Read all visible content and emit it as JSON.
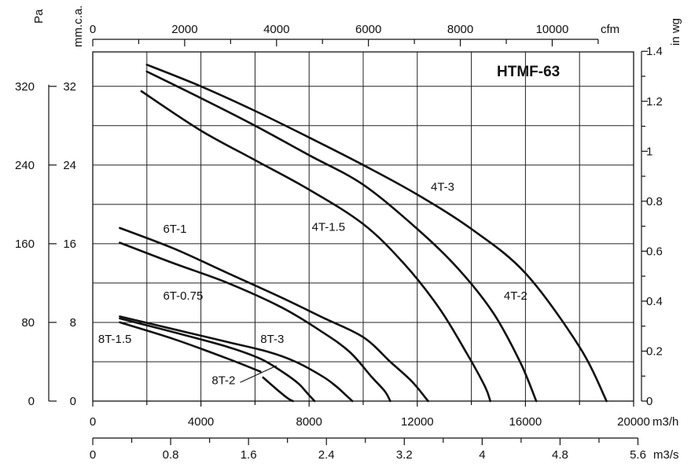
{
  "chart_data": {
    "type": "line",
    "title": "HTMF-63",
    "x": {
      "label": "m3/h",
      "lim": [
        0,
        20000
      ],
      "ticks": [
        0,
        4000,
        8000,
        12000,
        16000,
        20000
      ],
      "tick_labels": [
        "0",
        "4000",
        "8000",
        "12000",
        "16000",
        "20000"
      ]
    },
    "x_secondary_bottom": {
      "label": "m3/s",
      "ticks": [
        0,
        0.8,
        1.6,
        2.4,
        3.2,
        4,
        4.8,
        5.6
      ],
      "tick_labels": [
        "0",
        "0.8",
        "1.6",
        "2.4",
        "3.2",
        "4",
        "4.8",
        "5.6"
      ]
    },
    "x_secondary_top": {
      "label": "cfm",
      "ticks": [
        0,
        2000,
        4000,
        6000,
        8000,
        10000
      ],
      "tick_labels": [
        "0",
        "2000",
        "4000",
        "6000",
        "8000",
        "10000"
      ]
    },
    "y": {
      "label": "mm.c.a.",
      "lim": [
        0,
        35.5
      ],
      "ticks": [
        0,
        8,
        16,
        24,
        32
      ],
      "tick_labels": [
        "0",
        "8",
        "16",
        "24",
        "32"
      ]
    },
    "y_secondary_left": {
      "label": "Pa",
      "ticks": [
        0,
        80,
        160,
        240,
        320
      ],
      "tick_labels": [
        "0",
        "80",
        "160",
        "240",
        "320"
      ]
    },
    "y_secondary_right": {
      "label": "in wg",
      "ticks": [
        0,
        0.2,
        0.4,
        0.6,
        0.8,
        1,
        1.2,
        1.4
      ],
      "tick_labels": [
        "0",
        "0.2",
        "0.4",
        "0.6",
        "0.8",
        "1",
        "1.2",
        "1.4"
      ]
    },
    "grid": true,
    "series": [
      {
        "name": "4T-3",
        "x": [
          2000,
          4000,
          6000,
          8000,
          10000,
          12000,
          14000,
          16000,
          18000,
          19000
        ],
        "y": [
          34.2,
          32,
          29.5,
          26.8,
          24,
          21,
          17.5,
          13,
          5.5,
          0
        ]
      },
      {
        "name": "4T-2",
        "x": [
          2000,
          4000,
          6000,
          8000,
          10000,
          12000,
          13500,
          14800,
          15800,
          16400
        ],
        "y": [
          33.5,
          30.8,
          28,
          25,
          22,
          17.5,
          13.5,
          9,
          4,
          0
        ]
      },
      {
        "name": "4T-1.5",
        "x": [
          1800,
          4000,
          6000,
          8000,
          10000,
          11500,
          12800,
          13800,
          14500,
          14700
        ],
        "y": [
          31.5,
          27.5,
          24.5,
          21.5,
          18,
          14,
          9.5,
          5,
          1.5,
          0
        ]
      },
      {
        "name": "6T-1",
        "x": [
          1000,
          3000,
          5000,
          7000,
          8500,
          10000,
          11000,
          11800,
          12400
        ],
        "y": [
          17.6,
          15.5,
          13,
          10.5,
          8.5,
          6.5,
          4,
          2,
          0
        ]
      },
      {
        "name": "6T-0.75",
        "x": [
          1000,
          3000,
          5000,
          7000,
          8500,
          9500,
          10300,
          10800,
          11000
        ],
        "y": [
          16.1,
          14,
          12,
          9.5,
          7,
          5,
          2.5,
          1,
          0
        ]
      },
      {
        "name": "8T-3",
        "x": [
          1000,
          3000,
          5000,
          6500,
          7500,
          8500,
          9000,
          9400,
          9600
        ],
        "y": [
          8.6,
          7.3,
          6,
          5,
          4,
          2.5,
          1.5,
          0.5,
          0
        ]
      },
      {
        "name": "8T-2",
        "x": [
          1000,
          3000,
          5000,
          6200,
          7000,
          7600,
          7900,
          8200
        ],
        "y": [
          8.4,
          7,
          5.5,
          4.3,
          3,
          1.8,
          0.9,
          0
        ]
      },
      {
        "name": "8T-1.5",
        "x": [
          1000,
          3000,
          5000,
          6200
        ],
        "y": [
          8,
          6.3,
          4.3,
          3
        ]
      },
      {
        "name": "8T-1.5",
        "x": [
          6300,
          6800,
          7200,
          7400
        ],
        "y": [
          2.4,
          1.2,
          0.3,
          0
        ]
      }
    ],
    "annotations": [
      {
        "text": "4T-3",
        "x": 12500,
        "y": 21.4
      },
      {
        "text": "4T-2",
        "x": 15200,
        "y": 10.3
      },
      {
        "text": "4T-1.5",
        "x": 8100,
        "y": 17.3
      },
      {
        "text": "6T-1",
        "x": 2600,
        "y": 17.1
      },
      {
        "text": "6T-0.75",
        "x": 2600,
        "y": 10.3
      },
      {
        "text": "8T-3",
        "x": 6200,
        "y": 5.9
      },
      {
        "text": "8T-2",
        "x": 4400,
        "y": 1.7
      },
      {
        "text": "8T-1.5",
        "x": 200,
        "y": 5.9
      }
    ],
    "colors": {
      "curve": "#111111",
      "grid": "#222222",
      "background": "#ffffff"
    }
  }
}
